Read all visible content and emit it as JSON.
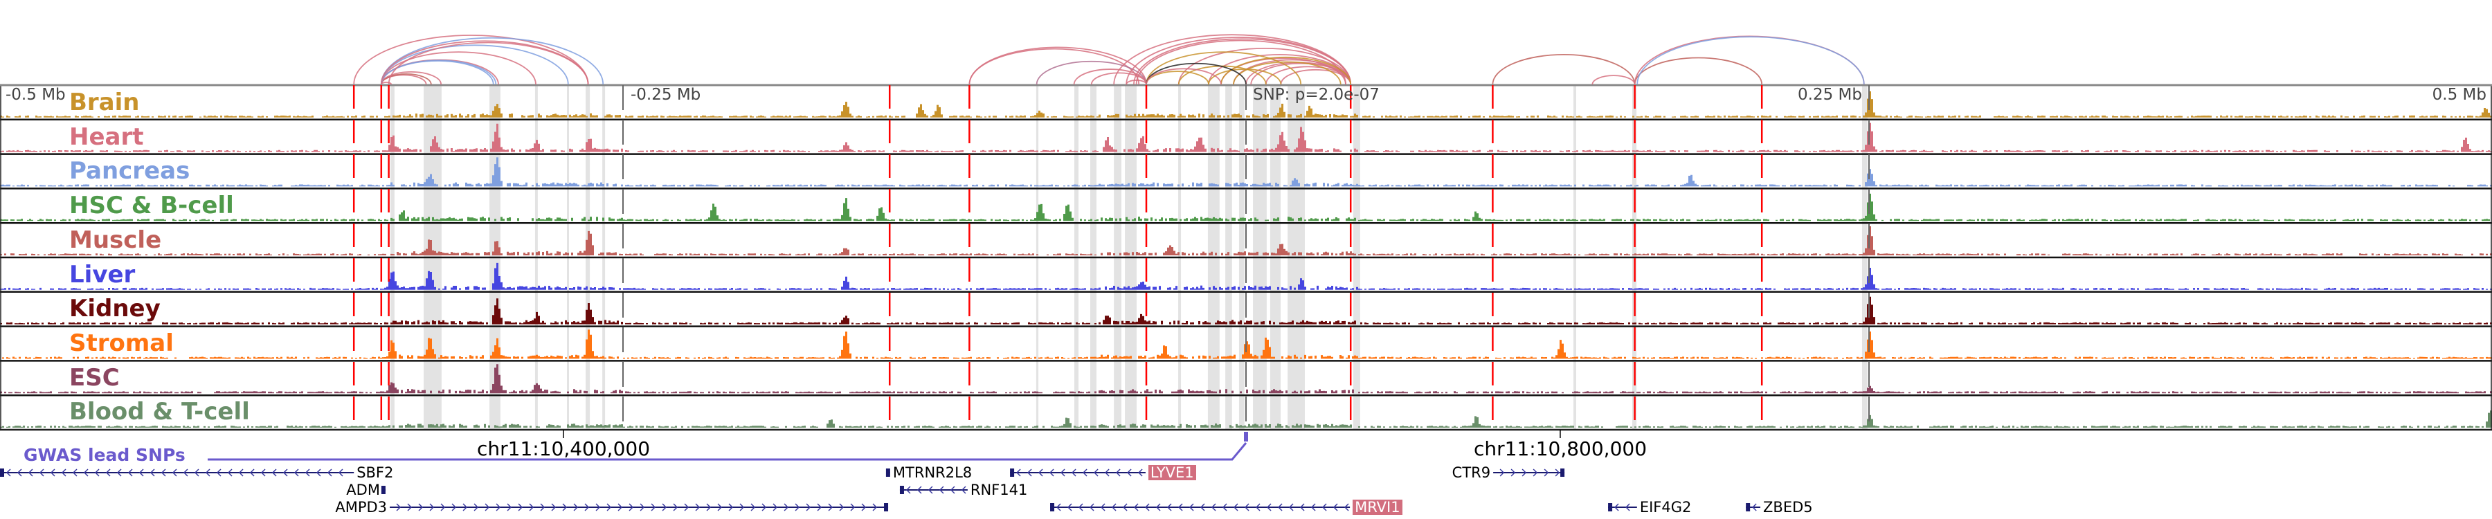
{
  "chart_data": {
    "type": "area",
    "title": "",
    "x_units": "kb offset from lead SNP",
    "xlim": [
      -500,
      500
    ],
    "scale_labels": [
      {
        "text": "-0.5 Mb",
        "kb": -500
      },
      {
        "text": "-0.25 Mb",
        "kb": -250
      },
      {
        "text": "0.25 Mb",
        "kb": 250
      },
      {
        "text": "0.5 Mb",
        "kb": 500
      }
    ],
    "snp_label": "SNP: p=2.0e-07",
    "coordinate_labels": [
      {
        "text": "chr11:10,400,000",
        "kb": -273.9
      },
      {
        "text": "chr11:10,800,000",
        "kb": 126.1
      }
    ],
    "gwas_label": "GWAS lead SNPs",
    "red_boundaries_kb": [
      -358,
      -347,
      -344,
      -143,
      -111,
      -40,
      42,
      99,
      156,
      207
    ],
    "shaded_regions_kb": [
      [
        -343.3,
        -341.7
      ],
      [
        -330,
        -322.8
      ],
      [
        -303.6,
        -299.2
      ],
      [
        -285.3,
        -284.2
      ],
      [
        -272.5,
        -271.7
      ],
      [
        -265,
        -263.3
      ],
      [
        -258.3,
        -257.2
      ],
      [
        -84.2,
        -83.3
      ],
      [
        -68.9,
        -67.2
      ],
      [
        -62.5,
        -60
      ],
      [
        -53,
        -50
      ],
      [
        -48.6,
        -43.9
      ],
      [
        -27.2,
        -26.1
      ],
      [
        -15.3,
        -10.6
      ],
      [
        -8.3,
        -5.6
      ],
      [
        -2.8,
        -0.6
      ],
      [
        2.8,
        8.3
      ],
      [
        9.7,
        13.9
      ],
      [
        16.7,
        23.6
      ],
      [
        43,
        45.8
      ],
      [
        131.4,
        132.5
      ],
      [
        155,
        156.7
      ],
      [
        247.2,
        249.4
      ]
    ],
    "tracks": [
      {
        "name": "Brain",
        "color": "#c8922a",
        "peaks": [
          [
            -301,
            0.35
          ],
          [
            -161,
            0.55
          ],
          [
            -131,
            0.4
          ],
          [
            -124,
            0.4
          ],
          [
            14,
            0.35
          ],
          [
            25,
            0.3
          ],
          [
            250,
            0.9
          ],
          [
            497,
            0.3
          ],
          [
            -83,
            0.2
          ]
        ]
      },
      {
        "name": "Heart",
        "color": "#d6707f",
        "peaks": [
          [
            -301,
            0.9
          ],
          [
            -326,
            0.45
          ],
          [
            -285,
            0.3
          ],
          [
            -264,
            0.45
          ],
          [
            -343,
            0.55
          ],
          [
            -161,
            0.3
          ],
          [
            14,
            0.7
          ],
          [
            22,
            0.8
          ],
          [
            -19,
            0.5
          ],
          [
            250,
            1.0
          ],
          [
            489,
            0.5
          ],
          [
            -56,
            0.4
          ],
          [
            -42,
            0.5
          ]
        ]
      },
      {
        "name": "Pancreas",
        "color": "#7f9fdf",
        "peaks": [
          [
            -301,
            1.0
          ],
          [
            -328,
            0.35
          ],
          [
            178,
            0.35
          ],
          [
            250,
            0.6
          ],
          [
            19,
            0.2
          ]
        ]
      },
      {
        "name": "HSC & B-cell",
        "color": "#4f9a4a",
        "peaks": [
          [
            -214,
            0.55
          ],
          [
            -161,
            0.75
          ],
          [
            -147,
            0.5
          ],
          [
            -72,
            0.6
          ],
          [
            -83,
            0.6
          ],
          [
            92,
            0.3
          ],
          [
            250,
            0.9
          ],
          [
            -339,
            0.3
          ]
        ]
      },
      {
        "name": "Muscle",
        "color": "#c0605a",
        "peaks": [
          [
            -264,
            0.85
          ],
          [
            -301,
            0.5
          ],
          [
            -328,
            0.5
          ],
          [
            -161,
            0.25
          ],
          [
            250,
            1.0
          ],
          [
            -31,
            0.35
          ],
          [
            14,
            0.4
          ]
        ]
      },
      {
        "name": "Liver",
        "color": "#4646e0",
        "peaks": [
          [
            -301,
            0.85
          ],
          [
            -343,
            0.6
          ],
          [
            -328,
            0.6
          ],
          [
            -161,
            0.4
          ],
          [
            250,
            0.7
          ],
          [
            -42,
            0.3
          ],
          [
            22,
            0.3
          ]
        ]
      },
      {
        "name": "Kidney",
        "color": "#6b0a0a",
        "peaks": [
          [
            -301,
            0.85
          ],
          [
            -264,
            0.65
          ],
          [
            -285,
            0.3
          ],
          [
            -161,
            0.3
          ],
          [
            250,
            0.95
          ],
          [
            -56,
            0.3
          ],
          [
            -42,
            0.3
          ]
        ]
      },
      {
        "name": "Stromal",
        "color": "#ff7410",
        "peaks": [
          [
            -264,
            1.0
          ],
          [
            -161,
            0.95
          ],
          [
            -328,
            0.7
          ],
          [
            -301,
            0.6
          ],
          [
            -343,
            0.55
          ],
          [
            0,
            0.6
          ],
          [
            8,
            0.7
          ],
          [
            126,
            0.6
          ],
          [
            -33,
            0.4
          ],
          [
            250,
            0.9
          ]
        ]
      },
      {
        "name": "ESC",
        "color": "#8b4560",
        "peaks": [
          [
            -301,
            1.0
          ],
          [
            -343,
            0.4
          ],
          [
            -285,
            0.25
          ],
          [
            250,
            0.2
          ]
        ]
      },
      {
        "name": "Blood & T-cell",
        "color": "#6a8f6a",
        "peaks": [
          [
            -167,
            0.3
          ],
          [
            -72,
            0.35
          ],
          [
            92,
            0.35
          ],
          [
            250,
            0.4
          ],
          [
            499,
            0.6
          ]
        ]
      }
    ],
    "arcs_kb": [
      [
        -358,
        -264,
        "#d6707f"
      ],
      [
        -347,
        -343,
        "#d6707f"
      ],
      [
        -347,
        -329,
        "#d6707f"
      ],
      [
        -347,
        -327,
        "#c0605a"
      ],
      [
        -347,
        -323,
        "#d6707f"
      ],
      [
        -347,
        -302,
        "#7f9fdf"
      ],
      [
        -347,
        -300,
        "#d6707f"
      ],
      [
        -347,
        -301,
        "#7f9fdf"
      ],
      [
        -347,
        -285,
        "#d6707f"
      ],
      [
        -347,
        -272,
        "#7f9fdf"
      ],
      [
        -347,
        -258,
        "#7f9fdf"
      ],
      [
        -347,
        -264,
        "#d6707f"
      ],
      [
        -344,
        -264,
        "#d6707f"
      ],
      [
        -111,
        -40,
        "#d6707f"
      ],
      [
        -111,
        -43,
        "#d6707f"
      ],
      [
        -84,
        -40,
        "#b07090"
      ],
      [
        -69,
        -40,
        "#d6707f"
      ],
      [
        -62,
        -40,
        "#d6707f"
      ],
      [
        -53,
        42,
        "#d6707f"
      ],
      [
        -48,
        42,
        "#d6707f"
      ],
      [
        -45,
        42,
        "#d6707f"
      ],
      [
        -44,
        40,
        "#d6707f"
      ],
      [
        -27,
        42,
        "#d6707f"
      ],
      [
        -15,
        42,
        "#d6707f"
      ],
      [
        -10,
        40,
        "#d6707f"
      ],
      [
        -5,
        42,
        "#d6707f"
      ],
      [
        0,
        42,
        "#d6707f"
      ],
      [
        2,
        42,
        "#d6707f"
      ],
      [
        8,
        42,
        "#d6707f"
      ],
      [
        14,
        42,
        "#d6707f"
      ],
      [
        -40,
        -15,
        "#c8922a"
      ],
      [
        -27,
        8,
        "#c8922a"
      ],
      [
        -15,
        14,
        "#c8922a"
      ],
      [
        -40,
        22,
        "#c8922a"
      ],
      [
        -10,
        42,
        "#c8922a"
      ],
      [
        -5,
        38,
        "#c8922a"
      ],
      [
        -40,
        0,
        "#222222"
      ],
      [
        -40,
        -10,
        "#d6707f"
      ],
      [
        -48,
        -40,
        "#d6707f"
      ],
      [
        99,
        156,
        "#c0605a"
      ],
      [
        139,
        156,
        "#d6707f"
      ],
      [
        156,
        207,
        "#c0605a"
      ],
      [
        156,
        248,
        "#d6707f"
      ],
      [
        157,
        248,
        "#7f9fdf"
      ]
    ]
  },
  "genes": [
    {
      "name": "SBF2",
      "start_kb": -500,
      "end_kb": -358,
      "strand": "-",
      "row": 0,
      "label_side": "right",
      "highlight": false
    },
    {
      "name": "ADM",
      "start_kb": -346.4,
      "end_kb": -345.3,
      "strand": "+",
      "row": 1,
      "label_side": "left",
      "highlight": false
    },
    {
      "name": "AMPD3",
      "start_kb": -343.6,
      "end_kb": -143.6,
      "strand": "+",
      "row": 2,
      "label_side": "left",
      "highlight": false
    },
    {
      "name": "MTRNR2L8",
      "start_kb": -143.9,
      "end_kb": -142.8,
      "strand": "+",
      "row": 0,
      "label_side": "right",
      "highlight": false
    },
    {
      "name": "RNF141",
      "start_kb": -138.9,
      "end_kb": -111.7,
      "strand": "-",
      "row": 1,
      "label_side": "right",
      "highlight": false
    },
    {
      "name": "LYVE1",
      "start_kb": -94.7,
      "end_kb": -40.3,
      "strand": "-",
      "row": 0,
      "label_side": "right",
      "highlight": true
    },
    {
      "name": "MRVI1",
      "start_kb": -78.6,
      "end_kb": 41.7,
      "strand": "-",
      "row": 2,
      "label_side": "right",
      "highlight": true
    },
    {
      "name": "CTR9",
      "start_kb": 99.2,
      "end_kb": 127.8,
      "strand": "+",
      "row": 0,
      "label_side": "left",
      "highlight": false
    },
    {
      "name": "EIF4G2",
      "start_kb": 145.3,
      "end_kb": 156.9,
      "strand": "-",
      "row": 2,
      "label_side": "right",
      "highlight": false
    },
    {
      "name": "ZBED5",
      "start_kb": 200.6,
      "end_kb": 206.4,
      "strand": "-",
      "row": 2,
      "label_side": "right",
      "highlight": false
    }
  ]
}
